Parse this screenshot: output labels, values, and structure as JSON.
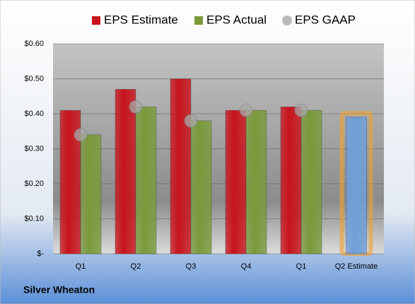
{
  "chart_data": {
    "type": "bar",
    "title": "Silver Wheaton",
    "categories": [
      "Q1",
      "Q2",
      "Q3",
      "Q4",
      "Q1",
      "Q2 Estimate"
    ],
    "series": [
      {
        "name": "EPS Estimate",
        "color": "#c8141c",
        "point_colors": [
          "#c8141c",
          "#c8141c",
          "#c8141c",
          "#c8141c",
          "#c8141c",
          "#6f9fd8"
        ],
        "values": [
          0.41,
          0.47,
          0.5,
          0.41,
          0.42,
          0.39
        ]
      },
      {
        "name": "EPS Actual",
        "color": "#7a9a3c",
        "values": [
          0.34,
          0.42,
          0.38,
          0.41,
          0.41,
          null
        ]
      },
      {
        "name": "EPS GAAP",
        "type": "scatter",
        "color": "#a8a8a8",
        "values": [
          0.34,
          0.42,
          0.38,
          0.41,
          0.41,
          null
        ]
      }
    ],
    "ylim": [
      0,
      0.6
    ],
    "yticks": [
      {
        "value": 0,
        "label": "$-"
      },
      {
        "value": 0.1,
        "label": "$0.10"
      },
      {
        "value": 0.2,
        "label": "$0.20"
      },
      {
        "value": 0.3,
        "label": "$0.30"
      },
      {
        "value": 0.4,
        "label": "$0.40"
      },
      {
        "value": 0.5,
        "label": "$0.50"
      },
      {
        "value": 0.6,
        "label": "$0.60"
      }
    ],
    "grid": true,
    "legend": "top"
  }
}
